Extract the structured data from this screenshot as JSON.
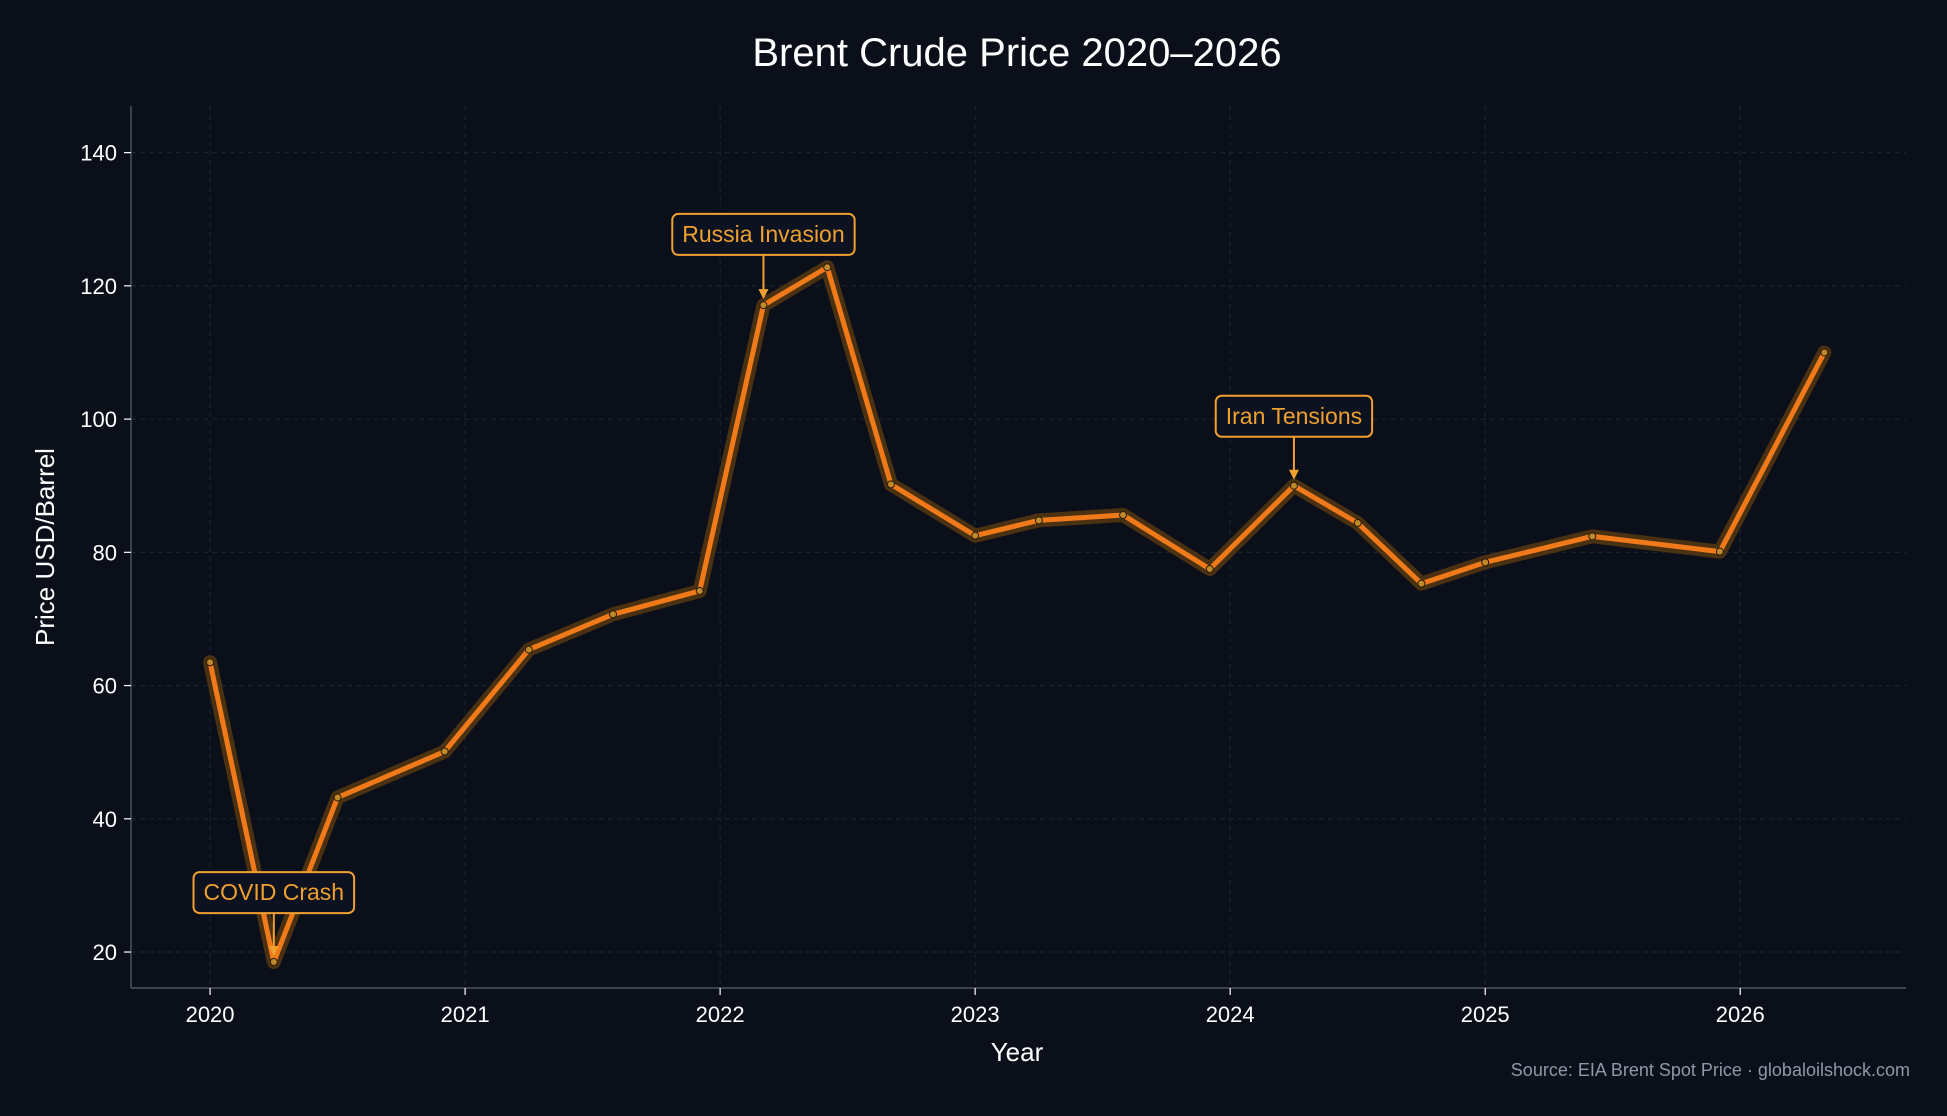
{
  "chart_data": {
    "type": "line",
    "title": "Brent Crude Price 2020–2026",
    "xlabel": "Year",
    "ylabel": "Price USD/Barrel",
    "source": "Source: EIA Brent Spot Price · globaloilshock.com",
    "xlim": [
      2019.69,
      2026.65
    ],
    "ylim": [
      14.6,
      147
    ],
    "x_ticks": [
      2020,
      2021,
      2022,
      2023,
      2024,
      2025,
      2026
    ],
    "y_ticks": [
      20,
      40,
      60,
      80,
      100,
      120,
      140
    ],
    "grid": true,
    "series": [
      {
        "x": [
          2020.0,
          2020.25,
          2020.5,
          2020.92,
          2021.25,
          2021.58,
          2021.92,
          2022.17,
          2022.42,
          2022.67,
          2023.0,
          2023.25,
          2023.58,
          2023.92,
          2024.25,
          2024.5,
          2024.75,
          2025.0,
          2025.42,
          2025.92,
          2026.33
        ],
        "y": [
          63.5,
          18.5,
          43.2,
          50.1,
          65.4,
          70.7,
          74.2,
          117.1,
          122.8,
          90.2,
          82.5,
          84.8,
          85.6,
          77.5,
          90.0,
          84.4,
          75.3,
          78.5,
          82.4,
          80.1,
          110.0
        ]
      }
    ],
    "annotations": [
      {
        "text": "COVID Crash",
        "x": 2020.25,
        "y": 18.5,
        "text_y": 29
      },
      {
        "text": "Russia Invasion",
        "x": 2022.17,
        "y": 117.1,
        "text_y": 127.8
      },
      {
        "text": "Iran Tensions",
        "x": 2024.25,
        "y": 90.0,
        "text_y": 100.5
      }
    ],
    "colors": {
      "background": "#0b0f19",
      "line": "#f07a1a",
      "glow": "#5a3a10",
      "annotation": "#f0a030",
      "grid": "#1d2433",
      "axis": "#5a6070"
    }
  }
}
